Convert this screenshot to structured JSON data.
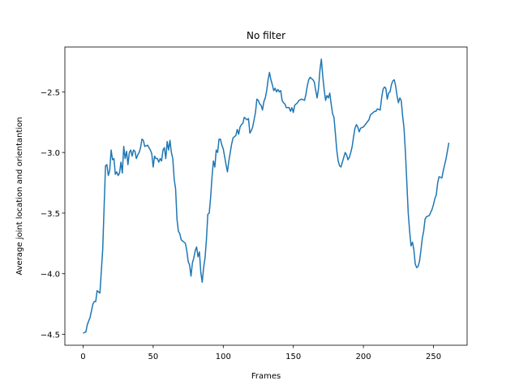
{
  "chart_data": {
    "type": "line",
    "title": "No filter",
    "xlabel": "Frames",
    "ylabel": "Average joint location and orientantion",
    "x": [
      0,
      2,
      3,
      5,
      7,
      8,
      9,
      10,
      12,
      14,
      15,
      16,
      17,
      18,
      19,
      20,
      21,
      22,
      23,
      24,
      25,
      26,
      27,
      28,
      29,
      30,
      31,
      32,
      33,
      34,
      35,
      36,
      37,
      38,
      39,
      40,
      41,
      42,
      43,
      44,
      46,
      48,
      49,
      50,
      51,
      52,
      53,
      54,
      55,
      56,
      57,
      58,
      59,
      60,
      61,
      62,
      63,
      64,
      65,
      66,
      67,
      68,
      69,
      70,
      71,
      73,
      74,
      75,
      76,
      77,
      78,
      79,
      80,
      81,
      82,
      83,
      84,
      85,
      86,
      87,
      88,
      89,
      90,
      91,
      92,
      93,
      94,
      95,
      96,
      97,
      98,
      99,
      100,
      102,
      103,
      104,
      106,
      107,
      109,
      110,
      111,
      112,
      113,
      114,
      115,
      116,
      117,
      118,
      119,
      120,
      121,
      122,
      123,
      124,
      125,
      126,
      127,
      128,
      129,
      130,
      131,
      132,
      133,
      134,
      135,
      136,
      137,
      138,
      139,
      140,
      141,
      142,
      143,
      144,
      145,
      147,
      148,
      149,
      150,
      151,
      152,
      153,
      154,
      156,
      158,
      159,
      160,
      161,
      162,
      164,
      165,
      166,
      167,
      168,
      169,
      170,
      171,
      172,
      173,
      174,
      175,
      176,
      177,
      178,
      179,
      180,
      181,
      182,
      183,
      184,
      185,
      186,
      187,
      188,
      189,
      190,
      191,
      192,
      193,
      194,
      195,
      196,
      197,
      198,
      200,
      202,
      204,
      205,
      206,
      208,
      209,
      210,
      212,
      213,
      214,
      215,
      216,
      217,
      218,
      219,
      220,
      221,
      222,
      223,
      224,
      225,
      226,
      227,
      228,
      229,
      230,
      232,
      233,
      234,
      235,
      236,
      237,
      238,
      239,
      240,
      241,
      242,
      243,
      244,
      245,
      247,
      249,
      250,
      251,
      252,
      253,
      254,
      256,
      257,
      259,
      261
    ],
    "series": [
      {
        "name": "No filter",
        "color": "#1f77b4",
        "values": [
          -4.49,
          -4.48,
          -4.42,
          -4.36,
          -4.25,
          -4.23,
          -4.23,
          -4.14,
          -4.16,
          -3.8,
          -3.45,
          -3.11,
          -3.1,
          -3.19,
          -3.15,
          -2.98,
          -3.06,
          -3.05,
          -3.18,
          -3.16,
          -3.19,
          -3.17,
          -3.08,
          -3.17,
          -2.95,
          -3.05,
          -2.99,
          -3.1,
          -3.0,
          -2.98,
          -3.03,
          -2.98,
          -2.99,
          -3.05,
          -3.02,
          -3.0,
          -2.96,
          -2.89,
          -2.9,
          -2.95,
          -2.94,
          -2.98,
          -3.01,
          -3.12,
          -3.03,
          -3.05,
          -3.05,
          -3.08,
          -3.05,
          -3.07,
          -2.98,
          -2.96,
          -3.05,
          -2.91,
          -2.98,
          -2.9,
          -3.0,
          -3.05,
          -3.22,
          -3.3,
          -3.55,
          -3.65,
          -3.67,
          -3.72,
          -3.73,
          -3.75,
          -3.81,
          -3.9,
          -3.93,
          -4.02,
          -3.91,
          -3.87,
          -3.81,
          -3.78,
          -3.86,
          -3.82,
          -3.99,
          -4.07,
          -3.95,
          -3.87,
          -3.72,
          -3.51,
          -3.5,
          -3.37,
          -3.2,
          -3.07,
          -3.12,
          -2.98,
          -3.0,
          -2.89,
          -2.89,
          -2.94,
          -2.97,
          -3.1,
          -3.16,
          -3.07,
          -2.93,
          -2.88,
          -2.86,
          -2.81,
          -2.85,
          -2.79,
          -2.77,
          -2.76,
          -2.71,
          -2.72,
          -2.73,
          -2.72,
          -2.84,
          -2.82,
          -2.79,
          -2.73,
          -2.67,
          -2.56,
          -2.57,
          -2.6,
          -2.61,
          -2.65,
          -2.58,
          -2.55,
          -2.49,
          -2.4,
          -2.34,
          -2.4,
          -2.44,
          -2.49,
          -2.47,
          -2.5,
          -2.48,
          -2.5,
          -2.49,
          -2.57,
          -2.59,
          -2.6,
          -2.63,
          -2.63,
          -2.66,
          -2.63,
          -2.67,
          -2.61,
          -2.6,
          -2.59,
          -2.57,
          -2.56,
          -2.57,
          -2.52,
          -2.45,
          -2.4,
          -2.38,
          -2.4,
          -2.42,
          -2.49,
          -2.55,
          -2.47,
          -2.32,
          -2.23,
          -2.37,
          -2.48,
          -2.57,
          -2.53,
          -2.55,
          -2.51,
          -2.6,
          -2.68,
          -2.71,
          -2.84,
          -2.98,
          -3.07,
          -3.11,
          -3.12,
          -3.08,
          -3.04,
          -3.0,
          -3.02,
          -3.06,
          -3.04,
          -3.0,
          -2.95,
          -2.87,
          -2.8,
          -2.77,
          -2.79,
          -2.83,
          -2.8,
          -2.79,
          -2.76,
          -2.73,
          -2.69,
          -2.68,
          -2.66,
          -2.66,
          -2.64,
          -2.65,
          -2.55,
          -2.48,
          -2.46,
          -2.47,
          -2.56,
          -2.51,
          -2.5,
          -2.44,
          -2.41,
          -2.4,
          -2.45,
          -2.53,
          -2.59,
          -2.55,
          -2.57,
          -2.7,
          -2.8,
          -3.0,
          -3.5,
          -3.65,
          -3.77,
          -3.74,
          -3.8,
          -3.92,
          -3.95,
          -3.94,
          -3.9,
          -3.81,
          -3.71,
          -3.65,
          -3.55,
          -3.53,
          -3.52,
          -3.47,
          -3.43,
          -3.38,
          -3.35,
          -3.25,
          -3.2,
          -3.21,
          -3.15,
          -3.05,
          -2.92
        ]
      }
    ],
    "xlim": [
      -13,
      274
    ],
    "ylim": [
      -4.59,
      -2.13
    ],
    "xticks": [
      0,
      50,
      100,
      150,
      200,
      250
    ],
    "yticks": [
      {
        "value": -4.5,
        "label": "−4.5"
      },
      {
        "value": -4.0,
        "label": "−4.0"
      },
      {
        "value": -3.5,
        "label": "−3.5"
      },
      {
        "value": -3.0,
        "label": "−3.0"
      },
      {
        "value": -2.5,
        "label": "−2.5"
      }
    ]
  }
}
